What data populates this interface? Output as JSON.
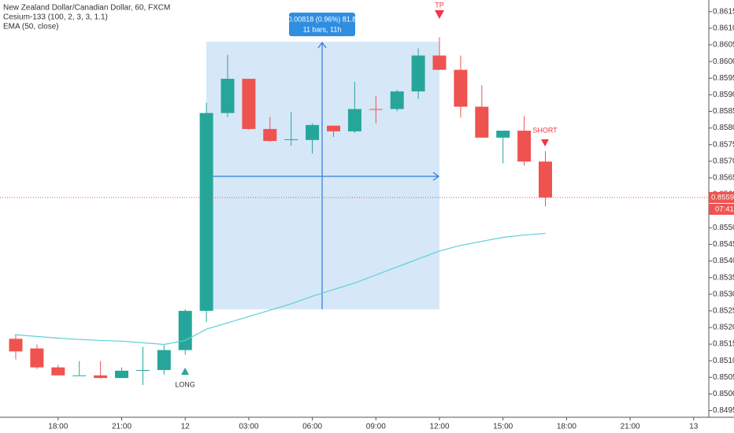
{
  "chart_data": {
    "type": "candlestick",
    "title": "New Zealand Dollar/Canadian Dollar, 60, FXCM",
    "indicator": "Cesium-133 (100, 2, 3, 3, 1.1)",
    "categories": [
      null,
      null,
      "18:00",
      null,
      null,
      "21:00",
      null,
      null,
      "12",
      null,
      null,
      "03:00",
      null,
      null,
      "06:00",
      null,
      null,
      "09:00",
      null,
      null,
      "12:00",
      null,
      null,
      "15:00",
      null,
      null,
      "18:00",
      null,
      null,
      "21:00",
      null,
      null,
      "13"
    ],
    "open": [
      0.85166,
      0.85137,
      0.8508,
      0.85056,
      0.85056,
      0.85048,
      0.8507,
      0.85072,
      0.85132,
      0.8525,
      0.85845,
      0.85948,
      0.85797,
      0.85764,
      0.85764,
      0.85807,
      0.8579,
      0.85857,
      0.85857,
      0.8591,
      0.86018,
      0.85975,
      0.85864,
      0.85771,
      0.85792,
      0.85699,
      null,
      null,
      null,
      null,
      null,
      null,
      null
    ],
    "high": [
      0.8518,
      0.85149,
      0.85087,
      0.85099,
      0.85099,
      0.8508,
      0.85142,
      0.85147,
      0.85255,
      0.85876,
      0.8602,
      0.85948,
      0.85833,
      0.85848,
      0.85814,
      0.85807,
      0.85939,
      0.85896,
      0.85915,
      0.8604,
      0.86073,
      0.86018,
      0.85929,
      0.85792,
      0.85836,
      0.8573,
      null,
      null,
      null,
      null,
      null,
      null,
      null
    ],
    "low": [
      0.85104,
      0.85075,
      0.85056,
      0.85056,
      0.85046,
      0.85048,
      0.85027,
      0.85058,
      0.85118,
      0.85216,
      0.85833,
      0.85795,
      0.85759,
      0.85747,
      0.85723,
      0.85773,
      0.85785,
      0.85814,
      0.8585,
      0.85888,
      0.85975,
      0.85831,
      0.85771,
      0.85694,
      0.85687,
      0.85564,
      null,
      null,
      null,
      null,
      null,
      null,
      null
    ],
    "close": [
      0.85128,
      0.8508,
      0.85056,
      0.85056,
      0.85048,
      0.8507,
      0.85072,
      0.85132,
      0.8525,
      0.85845,
      0.85948,
      0.85797,
      0.85761,
      0.85766,
      0.85809,
      0.8579,
      0.85857,
      0.85855,
      0.8591,
      0.86018,
      0.85975,
      0.85864,
      0.85771,
      0.85792,
      0.85699,
      0.85591,
      null,
      null,
      null,
      null,
      null,
      null,
      null
    ],
    "up_color": "#26a69a",
    "down_color": "#ef5350",
    "ema": {
      "name": "EMA (50, close)",
      "color": "#5fcfd8",
      "values": [
        0.85178,
        0.85173,
        0.85168,
        0.85164,
        0.85161,
        0.85159,
        0.85154,
        0.85149,
        0.85161,
        0.85195,
        0.85214,
        0.85233,
        0.85252,
        0.85271,
        0.85294,
        0.85314,
        0.85334,
        0.85358,
        0.85382,
        0.85406,
        0.8543,
        0.85447,
        0.85459,
        0.85471,
        0.85478,
        0.85483,
        null,
        null,
        null,
        null,
        null,
        null,
        null
      ]
    },
    "ylim": [
      0.8493,
      0.86185
    ],
    "yticks": [
      {
        "value": 0.8495,
        "label": "0.84950"
      },
      {
        "value": 0.85,
        "label": "0.85000"
      },
      {
        "value": 0.8505,
        "label": "0.85050"
      },
      {
        "value": 0.851,
        "label": "0.85100"
      },
      {
        "value": 0.8515,
        "label": "0.85150"
      },
      {
        "value": 0.852,
        "label": "0.85200"
      },
      {
        "value": 0.8525,
        "label": "0.85250"
      },
      {
        "value": 0.853,
        "label": "0.85300"
      },
      {
        "value": 0.8535,
        "label": "0.85350"
      },
      {
        "value": 0.854,
        "label": "0.85400"
      },
      {
        "value": 0.8545,
        "label": "0.85450"
      },
      {
        "value": 0.855,
        "label": "0.85500"
      },
      {
        "value": 0.8555,
        "label": "0.85550"
      },
      {
        "value": 0.856,
        "label": "0.85600"
      },
      {
        "value": 0.8565,
        "label": "0.85650"
      },
      {
        "value": 0.857,
        "label": "0.85700"
      },
      {
        "value": 0.8575,
        "label": "0.85750"
      },
      {
        "value": 0.858,
        "label": "0.85800"
      },
      {
        "value": 0.8585,
        "label": "0.85850"
      },
      {
        "value": 0.859,
        "label": "0.85900"
      },
      {
        "value": 0.8595,
        "label": "0.85950"
      },
      {
        "value": 0.86,
        "label": "0.86000"
      },
      {
        "value": 0.8605,
        "label": "0.86050"
      },
      {
        "value": 0.861,
        "label": "0.86100"
      },
      {
        "value": 0.8615,
        "label": "0.86150"
      }
    ],
    "grid": false,
    "last_price": 0.85591,
    "countdown": "07:41",
    "measure": {
      "change": "0.00818 (0.96%) 81.8",
      "span": "11 bars, 11h"
    },
    "annotations": {
      "tp": "TP",
      "short": "SHORT",
      "long": "LONG"
    }
  }
}
